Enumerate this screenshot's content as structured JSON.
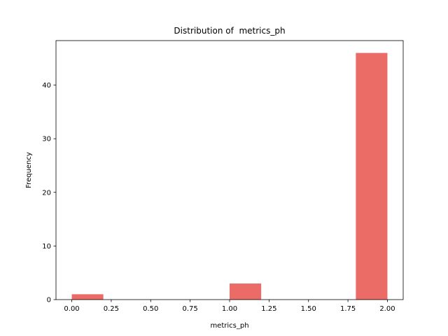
{
  "chart_data": {
    "type": "bar",
    "title": "Distribution of  metrics_ph",
    "xlabel": "metrics_ph",
    "ylabel": "Frequency",
    "bin_edges": [
      0.0,
      0.2,
      0.4,
      0.6,
      0.8,
      1.0,
      1.2,
      1.4,
      1.6,
      1.8,
      2.0
    ],
    "values": [
      1,
      0,
      0,
      0,
      0,
      3,
      0,
      0,
      0,
      46
    ],
    "xlim": [
      -0.1,
      2.1
    ],
    "ylim": [
      0,
      48.3
    ],
    "xticks": [
      "0.00",
      "0.25",
      "0.50",
      "0.75",
      "1.00",
      "1.25",
      "1.50",
      "1.75",
      "2.00"
    ],
    "yticks": [
      "0",
      "10",
      "20",
      "30",
      "40"
    ],
    "bar_color": "#e8524b",
    "bar_opacity": 0.85,
    "grid": false,
    "legend": "none"
  }
}
